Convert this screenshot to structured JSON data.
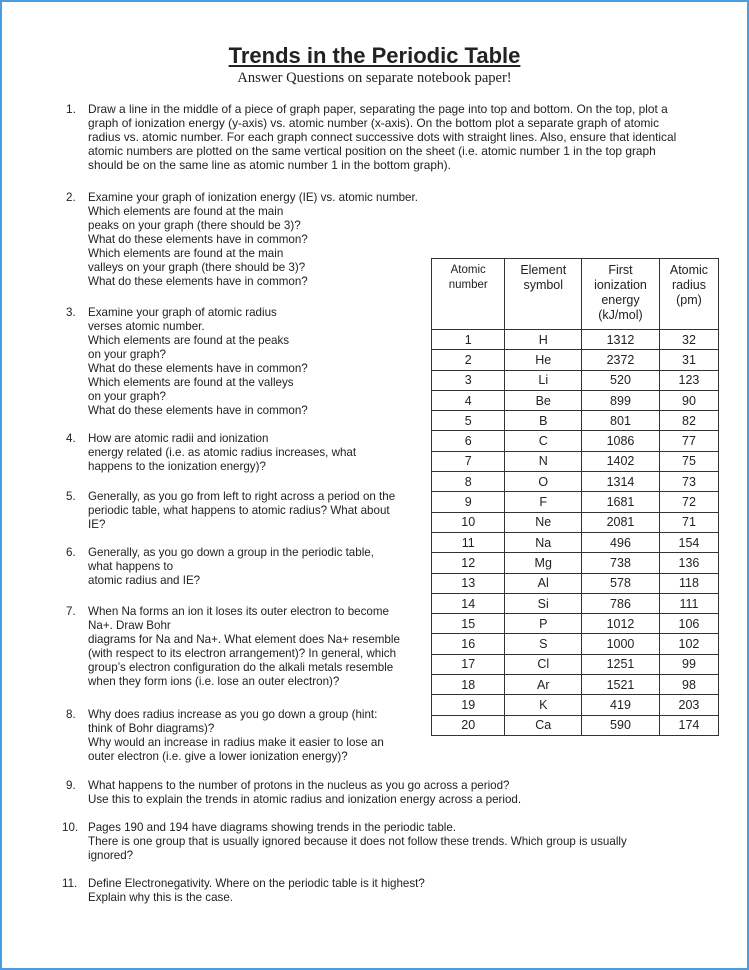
{
  "title": "Trends in the Periodic Table",
  "subtitle": "Answer Questions on separate notebook paper!",
  "questions": [
    {
      "num": "1.",
      "lines": [
        "Draw a line in the middle of a piece of graph paper, separating the page into top and bottom. On the top, plot a",
        "graph of ionization energy (y-axis) vs. atomic number (x-axis). On the bottom plot a separate graph of atomic",
        "radius vs. atomic number. For each graph connect successive dots with straight lines. Also, ensure that identical",
        "atomic numbers are plotted on the same vertical position on the sheet (i.e. atomic number 1 in the top graph",
        "should be on the same line as atomic number 1 in the bottom graph)."
      ]
    },
    {
      "num": "2.",
      "lines": [
        "Examine your graph of ionization energy (IE) vs. atomic number.",
        "Which elements are found at the main",
        "peaks on your graph (there should be 3)?",
        "What do these elements have in common?",
        "Which elements are found at the main",
        "valleys on your graph (there should be 3)?",
        "What do these elements have in common?"
      ]
    },
    {
      "num": "3.",
      "lines": [
        "Examine your graph of atomic radius",
        "verses atomic number.",
        "Which elements are found at the peaks",
        "on your graph?",
        "What do these elements have in common?",
        "Which elements are found at the valleys",
        "on your graph?",
        "What do these elements have in common?"
      ]
    },
    {
      "num": "4.",
      "lines": [
        "How are atomic radii and ionization",
        "energy related (i.e. as atomic radius increases, what",
        "happens to the ionization energy)?"
      ]
    },
    {
      "num": "5.",
      "lines": [
        "Generally, as you go from left to right across a period on the",
        "periodic table, what happens to atomic radius? What about",
        "IE?"
      ]
    },
    {
      "num": "6.",
      "lines": [
        "Generally, as you go down a group in the periodic table,",
        "what happens to",
        "atomic   radius and IE?"
      ]
    },
    {
      "num": "7.",
      "lines": [
        "When Na forms an ion it loses its outer electron to become",
        "Na+. Draw Bohr",
        "diagrams for Na and Na+. What element does Na+ resemble",
        "(with respect to its electron arrangement)? In general, which",
        "group’s electron configuration do the alkali metals resemble",
        "when they form ions (i.e. lose an outer electron)?"
      ]
    },
    {
      "num": "8.",
      "lines": [
        "Why does radius increase as you go down a group (hint:",
        "think of Bohr diagrams)?",
        "Why  would an increase in radius make it easier to lose an",
        "outer electron (i.e. give a lower ionization energy)?"
      ]
    },
    {
      "num": "9.",
      "lines": [
        "What happens to the number of protons in the nucleus as you go across a period?",
        "Use this to explain the trends in atomic radius and ionization energy across a period."
      ]
    },
    {
      "num": "10.",
      "lines": [
        "Pages 190 and 194 have diagrams showing trends in the periodic table.",
        "There is one group that is usually ignored because it does not follow these trends. Which group is usually",
        "ignored?"
      ]
    },
    {
      "num": "11.",
      "lines": [
        "Define Electronegativity. Where on the periodic table is it highest?",
        "Explain why this is the case."
      ]
    }
  ],
  "table": {
    "headers": [
      "Atomic number",
      "Element symbol",
      "First ionization energy (kJ/mol)",
      "Atomic radius (pm)"
    ],
    "rows": [
      [
        "1",
        "H",
        "1312",
        "32"
      ],
      [
        "2",
        "He",
        "2372",
        "31"
      ],
      [
        "3",
        "Li",
        "520",
        "123"
      ],
      [
        "4",
        "Be",
        "899",
        "90"
      ],
      [
        "5",
        "B",
        "801",
        "82"
      ],
      [
        "6",
        "C",
        "1086",
        "77"
      ],
      [
        "7",
        "N",
        "1402",
        "75"
      ],
      [
        "8",
        "O",
        "1314",
        "73"
      ],
      [
        "9",
        "F",
        "1681",
        "72"
      ],
      [
        "10",
        "Ne",
        "2081",
        "71"
      ],
      [
        "11",
        "Na",
        "496",
        "154"
      ],
      [
        "12",
        "Mg",
        "738",
        "136"
      ],
      [
        "13",
        "Al",
        "578",
        "118"
      ],
      [
        "14",
        "Si",
        "786",
        "111"
      ],
      [
        "15",
        "P",
        "1012",
        "106"
      ],
      [
        "16",
        "S",
        "1000",
        "102"
      ],
      [
        "17",
        "Cl",
        "1251",
        "99"
      ],
      [
        "18",
        "Ar",
        "1521",
        "98"
      ],
      [
        "19",
        "K",
        "419",
        "203"
      ],
      [
        "20",
        "Ca",
        "590",
        "174"
      ]
    ]
  },
  "colors": {
    "border": "#4a9de0",
    "text": "#222222"
  }
}
